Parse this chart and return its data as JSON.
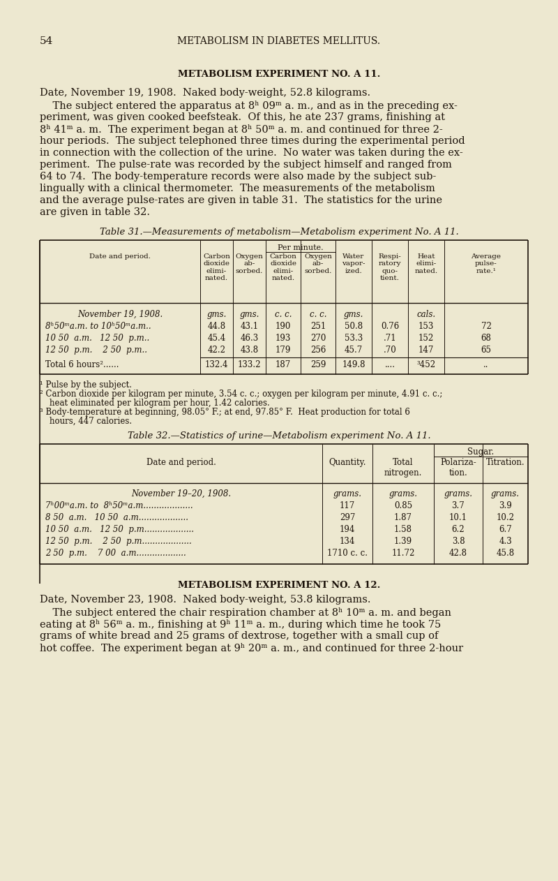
{
  "bg_color": "#ede8d0",
  "text_color": "#1a1008",
  "page_num": "54",
  "header": "Metabolism in Diabetes Mellitus.",
  "section1_title": "Metabolism Experiment No. A 11.",
  "section1_para1": "Date, November 19, 1908.  Naked body-weight, 52.8 kilograms.",
  "section1_para2_lines": [
    "    The subject entered the apparatus at 8ʰ 09ᵐ a. m., and as in the preceding ex-",
    "periment, was given cooked beefsteak.  Of this, he ate 237 grams, finishing at",
    "8ʰ 41ᵐ a. m.  The experiment began at 8ʰ 50ᵐ a. m. and continued for three 2-",
    "hour periods.  The subject telephoned three times during the experimental period",
    "in connection with the collection of the urine.  No water was taken during the ex-",
    "periment.  The pulse-rate was recorded by the subject himself and ranged from",
    "64 to 74.  The body-temperature records were also made by the subject sub-",
    "lingually with a clinical thermometer.  The measurements of the metabolism",
    "and the average pulse-rates are given in table 31.  The statistics for the urine",
    "are given in table 32."
  ],
  "table31_title": "Table 31.—Measurements of metabolism—Metabolism experiment No. A 11.",
  "table31_data": [
    [
      "November 19, 1908.",
      "gms.",
      "gms.",
      "c. c.",
      "c. c.",
      "gms.",
      "",
      "cals.",
      ""
    ],
    [
      "8ʰ50ᵐa.m. to 10ʰ50ᵐa.m..",
      "44.8",
      "43.1",
      "190",
      "251",
      "50.8",
      "0.76",
      "153",
      "72"
    ],
    [
      "10 50  a.m.   12 50  p.m..",
      "45.4",
      "46.3",
      "193",
      "270",
      "53.3",
      ".71",
      "152",
      "68"
    ],
    [
      "12 50  p.m.    2 50  p.m..",
      "42.2",
      "43.8",
      "179",
      "256",
      "45.7",
      ".70",
      "147",
      "65"
    ],
    [
      "Total 6 hours²......",
      "132.4",
      "133.2",
      "187",
      "259",
      "149.8",
      "....",
      "³452",
      ".."
    ]
  ],
  "table31_footnotes": [
    "¹ Pulse by the subject.",
    "² Carbon dioxide per kilogram per minute, 3.54 c. c.; oxygen per kilogram per minute, 4.91 c. c.;",
    "heat eliminated per kilogram per hour, 1.42 calories.",
    "³ Body-temperature at beginning, 98.05° F.; at end, 97.85° F.  Heat production for total 6",
    "hours, 447 calories."
  ],
  "table32_title": "Table 32.—Statistics of urine—Metabolism experiment No. A 11.",
  "table32_data": [
    [
      "November 19–20, 1908.",
      "grams.",
      "grams.",
      "grams.",
      "grams."
    ],
    [
      "7ʰ00ᵐa.m. to  8ʰ50ᵐa.m...................",
      "117",
      "0.85",
      "3.7",
      "3.9"
    ],
    [
      "8 50  a.m.   10 50  a.m...................",
      "297",
      "1.87",
      "10.1",
      "10.2"
    ],
    [
      "10 50  a.m.   12 50  p.m...................",
      "194",
      "1.58",
      "6.2",
      "6.7"
    ],
    [
      "12 50  p.m.    2 50  p.m...................",
      "134",
      "1.39",
      "3.8",
      "4.3"
    ],
    [
      "2 50  p.m.    7 00  a.m...................",
      "1710 c. c.",
      "11.72",
      "42.8",
      "45.8"
    ]
  ],
  "section2_title": "Metabolism Experiment No. A 12.",
  "section2_para1": "Date, November 23, 1908.  Naked body-weight, 53.8 kilograms.",
  "section2_para2_lines": [
    "    The subject entered the chair respiration chamber at 8ʰ 10ᵐ a. m. and began",
    "eating at 8ʰ 56ᵐ a. m., finishing at 9ʰ 11ᵐ a. m., during which time he took 75",
    "grams of white bread and 25 grams of dextrose, together with a small cup of",
    "hot coffee.  The experiment began at 9ʰ 20ᵐ a. m., and continued for three 2-hour"
  ]
}
